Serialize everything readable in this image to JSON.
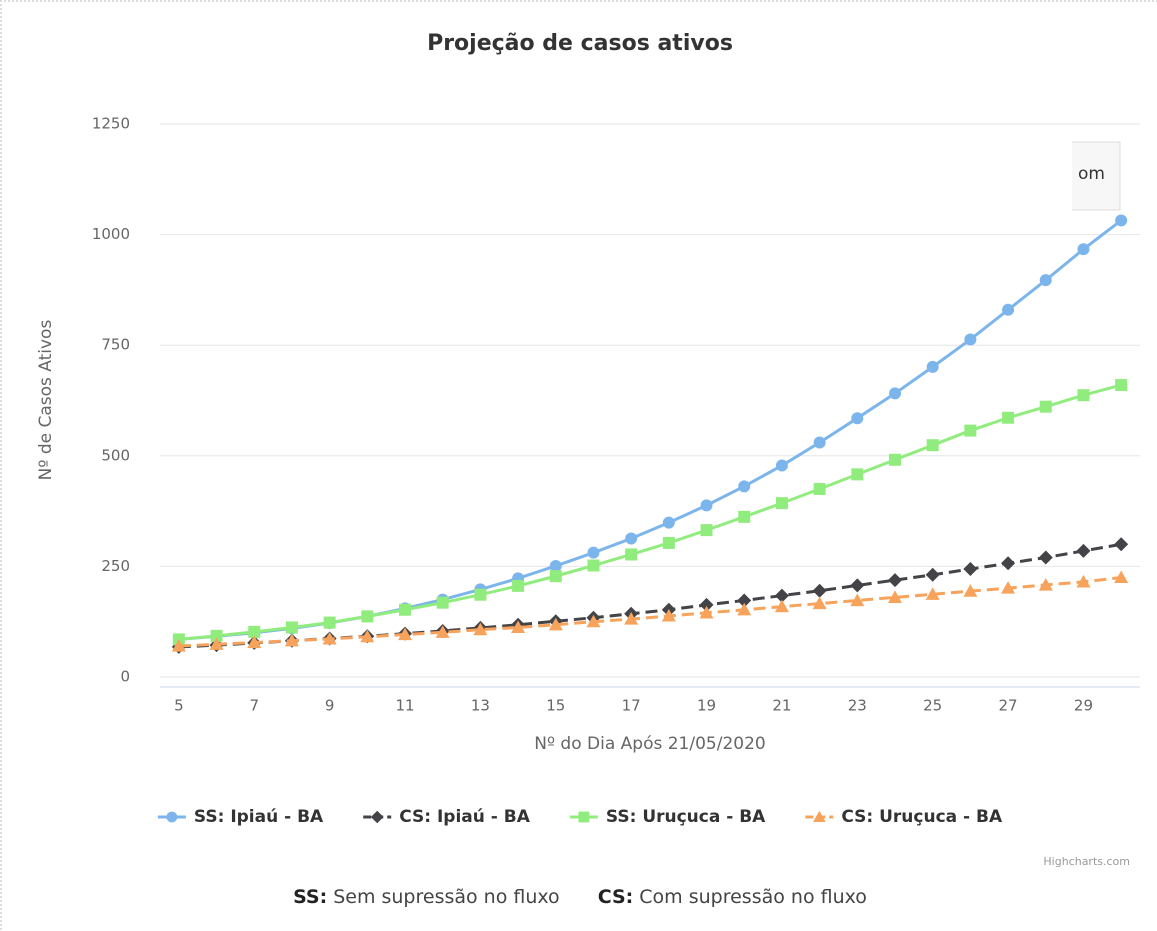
{
  "chart_data": {
    "type": "line",
    "title": "Projeção de casos ativos",
    "x_label": "Nº do Dia Após 21/05/2020",
    "y_label": "Nº de Casos Ativos",
    "x": [
      5,
      6,
      7,
      8,
      9,
      10,
      11,
      12,
      13,
      14,
      15,
      16,
      17,
      18,
      19,
      20,
      21,
      22,
      23,
      24,
      25,
      26,
      27,
      28,
      29,
      30
    ],
    "xlim": [
      4.5,
      30.5
    ],
    "xticks": [
      5,
      7,
      9,
      11,
      13,
      15,
      17,
      19,
      21,
      23,
      25,
      27,
      29
    ],
    "ylim": [
      0,
      1250
    ],
    "yticks": [
      0,
      250,
      500,
      750,
      1000,
      1250
    ],
    "grid": true,
    "legend": "bottom",
    "series": [
      {
        "name": "SS: Ipiaú - BA",
        "color": "#7cb5ec",
        "marker": "circle",
        "dash": "solid",
        "values": [
          85,
          92,
          100,
          110,
          122,
          137,
          155,
          175,
          198,
          223,
          251,
          281,
          313,
          349,
          388,
          431,
          478,
          530,
          585,
          641,
          701,
          763,
          830,
          897,
          967,
          1032
        ]
      },
      {
        "name": "CS: Ipiaú - BA",
        "color": "#434348",
        "marker": "diamond",
        "dash": "dash",
        "values": [
          68,
          72,
          77,
          82,
          87,
          92,
          98,
          104,
          111,
          118,
          126,
          134,
          143,
          152,
          163,
          173,
          184,
          195,
          207,
          219,
          231,
          244,
          257,
          270,
          285,
          300
        ]
      },
      {
        "name": "SS: Uruçuca - BA",
        "color": "#90ed7d",
        "marker": "square",
        "dash": "solid",
        "values": [
          85,
          93,
          102,
          112,
          123,
          137,
          152,
          168,
          186,
          206,
          228,
          252,
          277,
          303,
          332,
          362,
          393,
          425,
          458,
          491,
          524,
          557,
          586,
          611,
          637,
          660
        ]
      },
      {
        "name": "CS: Uruçuca - BA",
        "color": "#f7a35c",
        "marker": "triangle",
        "dash": "dash",
        "values": [
          70,
          74,
          78,
          82,
          86,
          91,
          96,
          101,
          107,
          112,
          118,
          125,
          131,
          138,
          145,
          152,
          159,
          166,
          173,
          180,
          187,
          194,
          201,
          208,
          215,
          225
        ]
      }
    ],
    "credits": "Highcharts.com",
    "menu_text": "om"
  },
  "footer": [
    {
      "abbr": "SS:",
      "text": "Sem supressão no fluxo"
    },
    {
      "abbr": "CS:",
      "text": "Com supressão no fluxo"
    }
  ]
}
